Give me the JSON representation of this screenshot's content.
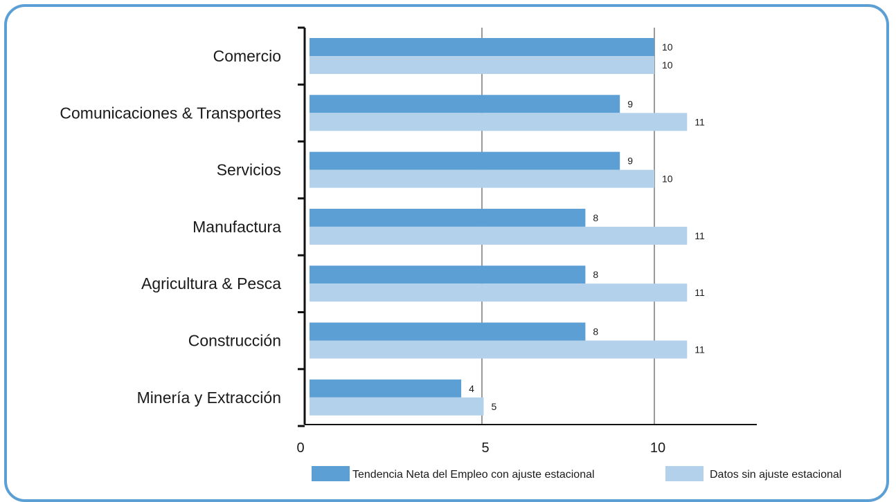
{
  "chart_data": {
    "type": "bar",
    "orientation": "horizontal",
    "categories": [
      "Comercio",
      "Comunicaciones & Transportes",
      "Servicios",
      "Manufactura",
      "Agricultura & Pesca",
      "Construcción",
      "Minería y Extracción"
    ],
    "series": [
      {
        "name": "Tendencia Neta del Empleo con ajuste estacional",
        "color": "#5b9fd5",
        "values": [
          10,
          9,
          9,
          8,
          8,
          8,
          4.4
        ],
        "labels": [
          "10",
          "9",
          "9",
          "8",
          "8",
          "8",
          "4"
        ]
      },
      {
        "name": "Datos sin ajuste estacional",
        "color": "#b4d1ec",
        "values": [
          10,
          10.95,
          10,
          10.95,
          10.95,
          10.95,
          5.05
        ],
        "labels": [
          "10",
          "11",
          "10",
          "11",
          "11",
          "11",
          "5"
        ]
      }
    ],
    "xlim": [
      0,
      13
    ],
    "xticks": [
      "0",
      "5",
      "10"
    ],
    "xtick_values": [
      0,
      5,
      10
    ],
    "grid": "vertical gridlines at 5 and 10",
    "legend_position": "bottom-right",
    "title": "",
    "xlabel": "",
    "ylabel": ""
  }
}
